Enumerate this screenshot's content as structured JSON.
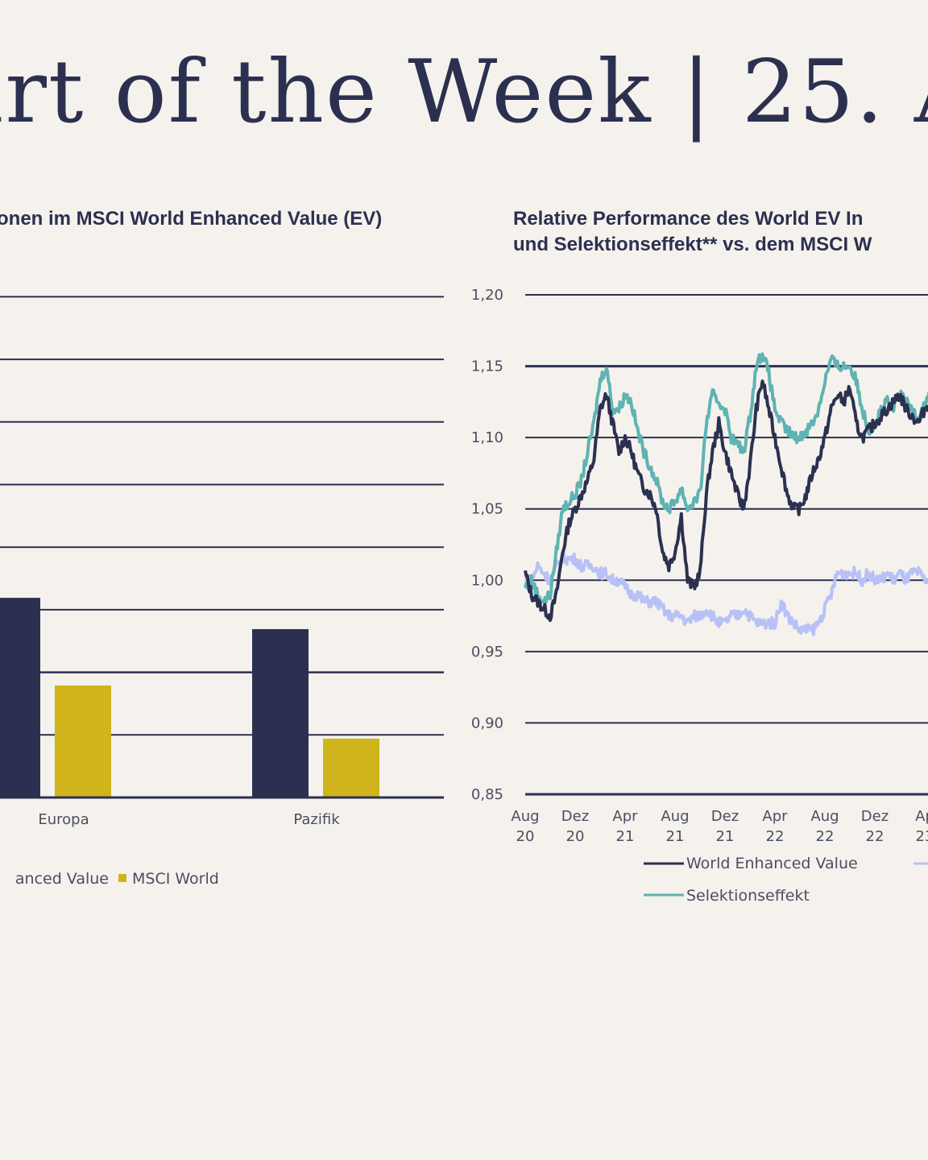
{
  "header": {
    "title": "art of the Week | 25. A"
  },
  "left_chart_title": {
    "part1": "onen im ",
    "part2": "MSCI World Enhanced Value (EV)"
  },
  "right_chart_title": {
    "line1_part1": "Relative Performance des ",
    "line1_part2": "World EV In",
    "line2_part1": "und Selektionseffekt** vs. dem ",
    "line2_part2": "MSCI W"
  },
  "colors": {
    "background": "#f5f2ed",
    "navy": "#2c3050",
    "gold": "#cfb41c",
    "teal": "#5fb3b3",
    "lavender": "#b8c1f7"
  },
  "chart_data": [
    {
      "type": "bar",
      "title": "…onen im MSCI World Enhanced Value (EV)",
      "categories": [
        "Europa",
        "Pazifik"
      ],
      "series": [
        {
          "name": "…anced Value",
          "color": "#2c3050",
          "values": [
            3.19,
            2.69
          ]
        },
        {
          "name": "MSCI World",
          "color": "#cfb41c",
          "values": [
            1.79,
            0.94
          ]
        }
      ],
      "value_units": "gridline steps (y-axis labels cropped)",
      "ylim": [
        0,
        8
      ],
      "grid": true,
      "legend": {
        "placement": "bottom",
        "entries": [
          "…anced Value",
          "MSCI World"
        ]
      }
    },
    {
      "type": "line",
      "title": "Relative Performance des World EV In… und Selektionseffekt** vs. dem MSCI W…",
      "x_ticks": [
        [
          "Aug",
          "20"
        ],
        [
          "Dez",
          "20"
        ],
        [
          "Apr",
          "21"
        ],
        [
          "Aug",
          "21"
        ],
        [
          "Dez",
          "21"
        ],
        [
          "Apr",
          "22"
        ],
        [
          "Aug",
          "22"
        ],
        [
          "Dez",
          "22"
        ],
        [
          "Ap",
          "23"
        ]
      ],
      "y_ticks": [
        "1,20",
        "1,15",
        "1,10",
        "1,05",
        "1,00",
        "0,95",
        "0,90",
        "0,85"
      ],
      "ylim": [
        0.85,
        1.2
      ],
      "grid": true,
      "legend": {
        "placement": "bottom",
        "entries": [
          "World Enhanced Value",
          "",
          "Selektionseffekt"
        ]
      },
      "x_months": [
        0,
        0.5,
        1,
        1.5,
        2,
        2.5,
        3,
        3.5,
        4,
        4.5,
        5,
        5.5,
        6,
        6.5,
        7,
        7.5,
        8,
        8.5,
        9,
        9.5,
        10,
        10.5,
        11,
        11.5,
        12,
        12.5,
        13,
        13.5,
        14,
        14.5,
        15,
        15.5,
        16,
        16.5,
        17,
        17.5,
        18,
        18.5,
        19,
        19.5,
        20,
        20.5,
        21,
        21.5,
        22,
        22.5,
        23,
        23.5,
        24,
        24.5,
        25,
        25.5,
        26,
        26.5,
        27,
        27.5,
        28,
        28.5,
        29,
        29.5,
        30,
        30.5,
        31,
        31.5,
        32,
        32.5,
        33,
        33.5,
        34
      ],
      "series": [
        {
          "name": "World Enhanced Value",
          "color": "#2c3050",
          "values": [
            1.005,
            0.99,
            0.985,
            0.98,
            0.975,
            0.99,
            1.02,
            1.04,
            1.05,
            1.06,
            1.07,
            1.085,
            1.12,
            1.13,
            1.11,
            1.09,
            1.1,
            1.09,
            1.075,
            1.065,
            1.06,
            1.05,
            1.02,
            1.01,
            1.02,
            1.045,
            1.0,
            0.995,
            1.005,
            1.06,
            1.09,
            1.11,
            1.09,
            1.075,
            1.06,
            1.05,
            1.08,
            1.12,
            1.14,
            1.12,
            1.1,
            1.08,
            1.06,
            1.05,
            1.05,
            1.06,
            1.075,
            1.085,
            1.1,
            1.12,
            1.13,
            1.125,
            1.135,
            1.11,
            1.1,
            1.105,
            1.11,
            1.115,
            1.12,
            1.125,
            1.13,
            1.12,
            1.115,
            1.11,
            1.12,
            1.125,
            1.13,
            1.13,
            1.13
          ]
        },
        {
          "name": "",
          "color": "#b8c1f7",
          "values": [
            1.0,
            1.0,
            1.01,
            1.005,
            1.0,
            1.01,
            1.015,
            1.015,
            1.015,
            1.01,
            1.01,
            1.01,
            1.005,
            1.005,
            1.0,
            1.0,
            0.995,
            0.99,
            0.99,
            0.985,
            0.985,
            0.985,
            0.98,
            0.975,
            0.975,
            0.975,
            0.97,
            0.975,
            0.975,
            0.98,
            0.975,
            0.97,
            0.97,
            0.975,
            0.975,
            0.98,
            0.975,
            0.97,
            0.97,
            0.97,
            0.97,
            0.985,
            0.975,
            0.97,
            0.965,
            0.965,
            0.965,
            0.97,
            0.98,
            0.99,
            1.005,
            1.005,
            1.005,
            1.005,
            1.0,
            1.005,
            1.0,
            1.0,
            1.005,
            1.0,
            1.005,
            1.0,
            1.005,
            1.005,
            1.0,
            1.0,
            1.005,
            1.0,
            1.005
          ]
        },
        {
          "name": "Selektionseffekt",
          "color": "#5fb3b3",
          "values": [
            0.995,
            1.0,
            0.99,
            0.985,
            0.99,
            1.02,
            1.05,
            1.055,
            1.06,
            1.07,
            1.09,
            1.11,
            1.14,
            1.15,
            1.12,
            1.12,
            1.13,
            1.125,
            1.105,
            1.09,
            1.08,
            1.07,
            1.055,
            1.05,
            1.055,
            1.065,
            1.05,
            1.055,
            1.06,
            1.11,
            1.13,
            1.125,
            1.12,
            1.1,
            1.095,
            1.09,
            1.115,
            1.15,
            1.16,
            1.145,
            1.12,
            1.11,
            1.105,
            1.1,
            1.1,
            1.105,
            1.11,
            1.12,
            1.14,
            1.155,
            1.15,
            1.15,
            1.15,
            1.14,
            1.12,
            1.105,
            1.11,
            1.12,
            1.125,
            1.12,
            1.13,
            1.125,
            1.12,
            1.115,
            1.125,
            1.13,
            1.125,
            1.13,
            1.13
          ]
        }
      ]
    }
  ]
}
